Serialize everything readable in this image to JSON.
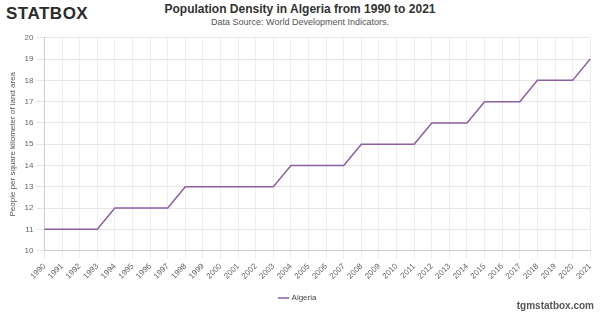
{
  "chart_data": {
    "type": "line",
    "title": "Population Density in Algeria from 1990 to 2021",
    "subtitle": "Data Source: World Development Indicators.",
    "y_label": "People per square kilometer of land area",
    "annotations": [
      "STATBOX",
      "tgmstatbox.com"
    ],
    "categories": [
      "1990",
      "1991",
      "1992",
      "1993",
      "1994",
      "1995",
      "1996",
      "1997",
      "1998",
      "1999",
      "2000",
      "2001",
      "2002",
      "2003",
      "2004",
      "2005",
      "2006",
      "2007",
      "2008",
      "2009",
      "2010",
      "2011",
      "2012",
      "2013",
      "2014",
      "2015",
      "2016",
      "2017",
      "2018",
      "2019",
      "2020",
      "2021"
    ],
    "series": [
      {
        "name": "Algeria",
        "color": "#8e5ea2",
        "values": [
          11,
          11,
          11,
          11,
          12,
          12,
          12,
          12,
          13,
          13,
          13,
          13,
          13,
          13,
          14,
          14,
          14,
          14,
          15,
          15,
          15,
          15,
          16,
          16,
          16,
          17,
          17,
          17,
          18,
          18,
          18,
          19
        ]
      }
    ],
    "ylim": [
      10,
      20
    ],
    "yticks": [
      10,
      11,
      12,
      13,
      14,
      15,
      16,
      17,
      18,
      19,
      20
    ],
    "grid": true,
    "legend": "bottom"
  }
}
